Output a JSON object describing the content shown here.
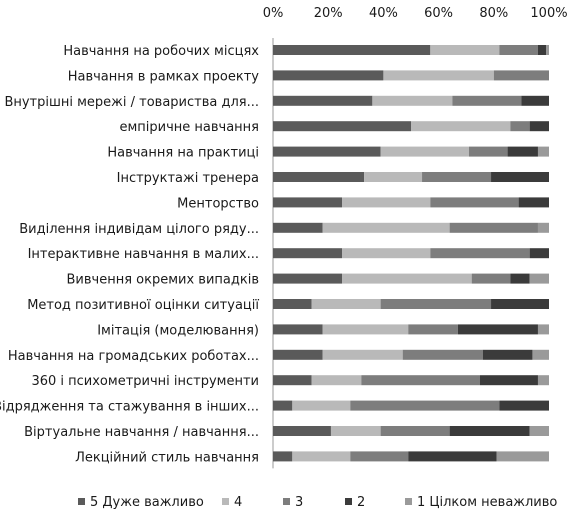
{
  "chart_data": {
    "type": "bar",
    "orientation": "horizontal",
    "stacked": true,
    "stack_mode": "percent",
    "xlim": [
      0,
      100
    ],
    "xticks": [
      "0%",
      "20%",
      "40%",
      "60%",
      "80%",
      "100%"
    ],
    "grid": false,
    "legend_position": "bottom",
    "categories": [
      "Навчання на робочих місцях",
      "Навчання в рамках проекту",
      "Внутрішні мережі / товариства для...",
      "емпіричне навчання",
      "Навчання на практиці",
      "Інструктажі тренера",
      "Менторство",
      "Виділення індивідам цілого ряду...",
      "Інтерактивне навчання в малих...",
      "Вивчення окремих випадків",
      "Метод позитивної оцінки ситуації",
      "Імітація (моделювання)",
      "Навчання на громадських роботах...",
      "360 і психометричні інструменти",
      "Відрядження та стажування в інших...",
      "Віртуальне навчання / навчання...",
      "Лекційний стиль навчання"
    ],
    "series": [
      {
        "name": "5 Дуже важливо",
        "color": "#5a5a5a",
        "values": [
          57,
          40,
          36,
          50,
          39,
          33,
          25,
          18,
          25,
          25,
          14,
          18,
          18,
          14,
          7,
          21,
          7
        ]
      },
      {
        "name": "4",
        "color": "#b9b9b9",
        "values": [
          25,
          40,
          29,
          36,
          32,
          21,
          32,
          46,
          32,
          47,
          25,
          31,
          29,
          18,
          21,
          18,
          21
        ]
      },
      {
        "name": "3",
        "color": "#7d7d7d",
        "values": [
          14,
          20,
          25,
          7,
          14,
          25,
          32,
          32,
          36,
          14,
          40,
          18,
          29,
          43,
          54,
          25,
          21
        ]
      },
      {
        "name": "2",
        "color": "#3b3b3b",
        "values": [
          3,
          0,
          10,
          7,
          11,
          21,
          11,
          0,
          7,
          7,
          21,
          29,
          18,
          21,
          18,
          29,
          32
        ]
      },
      {
        "name": "1 Цілком неважливо",
        "color": "#9a9a9a",
        "values": [
          1,
          0,
          0,
          0,
          4,
          0,
          0,
          4,
          0,
          7,
          0,
          4,
          6,
          4,
          0,
          7,
          19
        ]
      }
    ]
  }
}
